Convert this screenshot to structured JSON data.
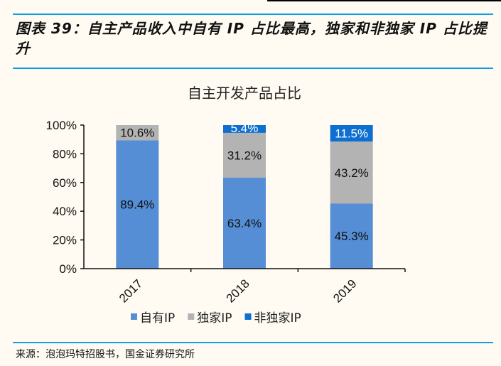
{
  "header": {
    "title": "图表 39：自主产品收入中自有 IP 占比最高，独家和非独家 IP 占比提升"
  },
  "footer": {
    "source": "来源：泡泡玛特招股书，国金证券研究所"
  },
  "chart_data": {
    "type": "bar",
    "stacked": true,
    "title": "自主开发产品占比",
    "categories": [
      "2017",
      "2018",
      "2019"
    ],
    "series": [
      {
        "name": "自有IP",
        "values": [
          89.4,
          63.4,
          45.3
        ],
        "labels": [
          "89.4%",
          "63.4%",
          "45.3%"
        ],
        "color": "#558ed5",
        "label_color": "#111111"
      },
      {
        "name": "独家IP",
        "values": [
          10.6,
          31.2,
          43.2
        ],
        "labels": [
          "10.6%",
          "31.2%",
          "43.2%"
        ],
        "color": "#b3b3b3",
        "label_color": "#111111"
      },
      {
        "name": "非独家IP",
        "values": [
          0,
          5.4,
          11.5
        ],
        "labels": [
          "",
          "5.4%",
          "11.5%"
        ],
        "color": "#0e6fd0",
        "label_color": "#ffffff"
      }
    ],
    "yticks": [
      "0%",
      "20%",
      "40%",
      "60%",
      "80%",
      "100%"
    ],
    "ylim": [
      0,
      100
    ],
    "grid": false,
    "legend": "bottom"
  }
}
